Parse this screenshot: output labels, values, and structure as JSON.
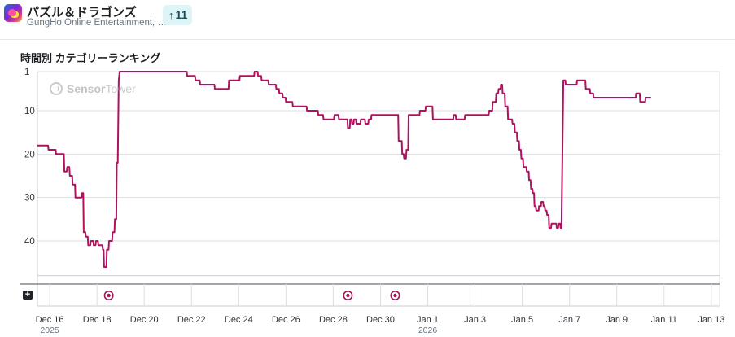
{
  "app": {
    "title": "パズル＆ドラゴンズ",
    "publisher": "GungHo Online Entertainment, …",
    "rank_change": "11",
    "icon": "app-icon-dragon",
    "rank_arrow_icon": "arrow-up-icon"
  },
  "section_title": "時間別 カテゴリーランキング",
  "watermark": {
    "brand_bold": "Sensor",
    "brand_rest": "Tower",
    "icon": "sensortower-logo-icon"
  },
  "annotation_icon": "add-annotation-icon",
  "colors": {
    "line": "#b0125f",
    "grid": "#dcdfe3",
    "badge_bg": "#dff4f6",
    "badge_text": "#15505a"
  },
  "chart_data": {
    "type": "line",
    "title": "時間別 カテゴリーランキング",
    "y_reversed": true,
    "ylim": [
      1,
      48
    ],
    "y_ticks": [
      1,
      10,
      20,
      30,
      40
    ],
    "x_range_days": [
      -0.52,
      28.35
    ],
    "x_ticks": [
      {
        "day": 0,
        "label": "Dec 16",
        "year": "2025"
      },
      {
        "day": 2,
        "label": "Dec 18"
      },
      {
        "day": 4,
        "label": "Dec 20"
      },
      {
        "day": 6,
        "label": "Dec 22"
      },
      {
        "day": 8,
        "label": "Dec 24"
      },
      {
        "day": 10,
        "label": "Dec 26"
      },
      {
        "day": 12,
        "label": "Dec 28"
      },
      {
        "day": 14,
        "label": "Dec 30"
      },
      {
        "day": 16,
        "label": "Jan 1",
        "year": "2026"
      },
      {
        "day": 18,
        "label": "Jan 3"
      },
      {
        "day": 20,
        "label": "Jan 5"
      },
      {
        "day": 22,
        "label": "Jan 7"
      },
      {
        "day": 24,
        "label": "Jan 9"
      },
      {
        "day": 26,
        "label": "Jan 11"
      },
      {
        "day": 28,
        "label": "Jan 13"
      }
    ],
    "annotation_markers_days": [
      2.5,
      12.62,
      14.62
    ],
    "grid": true,
    "series": [
      {
        "points": [
          [
            -0.52,
            18
          ],
          [
            -0.07,
            18
          ],
          [
            -0.05,
            19
          ],
          [
            0.25,
            19
          ],
          [
            0.27,
            20
          ],
          [
            0.6,
            20
          ],
          [
            0.62,
            24
          ],
          [
            0.72,
            24
          ],
          [
            0.74,
            23
          ],
          [
            0.83,
            23
          ],
          [
            0.85,
            25
          ],
          [
            0.95,
            25
          ],
          [
            0.97,
            27
          ],
          [
            1.07,
            27
          ],
          [
            1.09,
            30
          ],
          [
            1.35,
            30
          ],
          [
            1.37,
            29
          ],
          [
            1.42,
            29
          ],
          [
            1.44,
            38
          ],
          [
            1.51,
            38
          ],
          [
            1.53,
            39
          ],
          [
            1.61,
            39
          ],
          [
            1.63,
            41
          ],
          [
            1.72,
            41
          ],
          [
            1.74,
            40
          ],
          [
            1.84,
            40
          ],
          [
            1.86,
            41
          ],
          [
            1.94,
            41
          ],
          [
            1.96,
            40
          ],
          [
            2.04,
            40
          ],
          [
            2.06,
            41
          ],
          [
            2.23,
            41
          ],
          [
            2.25,
            42
          ],
          [
            2.28,
            42
          ],
          [
            2.3,
            46
          ],
          [
            2.4,
            46
          ],
          [
            2.42,
            42
          ],
          [
            2.49,
            42
          ],
          [
            2.51,
            40
          ],
          [
            2.64,
            40
          ],
          [
            2.66,
            38
          ],
          [
            2.74,
            38
          ],
          [
            2.76,
            35
          ],
          [
            2.82,
            35
          ],
          [
            2.84,
            22
          ],
          [
            2.88,
            22
          ],
          [
            2.92,
            3
          ],
          [
            2.96,
            1
          ],
          [
            5.8,
            1
          ],
          [
            5.82,
            2
          ],
          [
            6.15,
            2
          ],
          [
            6.17,
            3
          ],
          [
            6.35,
            3
          ],
          [
            6.37,
            4
          ],
          [
            6.97,
            4
          ],
          [
            6.99,
            5
          ],
          [
            7.57,
            5
          ],
          [
            7.59,
            3
          ],
          [
            8.03,
            3
          ],
          [
            8.05,
            2
          ],
          [
            8.65,
            2
          ],
          [
            8.67,
            1
          ],
          [
            8.8,
            1
          ],
          [
            8.82,
            2
          ],
          [
            8.95,
            2
          ],
          [
            8.97,
            3
          ],
          [
            9.25,
            3
          ],
          [
            9.27,
            4
          ],
          [
            9.57,
            4
          ],
          [
            9.59,
            5
          ],
          [
            9.7,
            5
          ],
          [
            9.72,
            6
          ],
          [
            9.85,
            6
          ],
          [
            9.87,
            7
          ],
          [
            9.98,
            7
          ],
          [
            10.0,
            8
          ],
          [
            10.27,
            8
          ],
          [
            10.29,
            9
          ],
          [
            10.87,
            9
          ],
          [
            10.89,
            10
          ],
          [
            11.35,
            10
          ],
          [
            11.37,
            11
          ],
          [
            11.57,
            11
          ],
          [
            11.59,
            12
          ],
          [
            12.03,
            12
          ],
          [
            12.05,
            11
          ],
          [
            12.22,
            11
          ],
          [
            12.24,
            12
          ],
          [
            12.6,
            12
          ],
          [
            12.62,
            14
          ],
          [
            12.7,
            14
          ],
          [
            12.72,
            12
          ],
          [
            12.78,
            12
          ],
          [
            12.8,
            13
          ],
          [
            12.86,
            13
          ],
          [
            12.88,
            12
          ],
          [
            12.96,
            12
          ],
          [
            12.98,
            13
          ],
          [
            13.15,
            13
          ],
          [
            13.17,
            12
          ],
          [
            13.34,
            12
          ],
          [
            13.36,
            13
          ],
          [
            13.48,
            13
          ],
          [
            13.5,
            12
          ],
          [
            13.6,
            12
          ],
          [
            13.62,
            11
          ],
          [
            14.75,
            11
          ],
          [
            14.77,
            17
          ],
          [
            14.9,
            17
          ],
          [
            14.92,
            20
          ],
          [
            14.98,
            20
          ],
          [
            15.0,
            21
          ],
          [
            15.08,
            21
          ],
          [
            15.1,
            19
          ],
          [
            15.17,
            19
          ],
          [
            15.19,
            11
          ],
          [
            15.65,
            11
          ],
          [
            15.67,
            10
          ],
          [
            15.9,
            10
          ],
          [
            15.92,
            9
          ],
          [
            16.2,
            9
          ],
          [
            16.22,
            12
          ],
          [
            17.08,
            12
          ],
          [
            17.1,
            11
          ],
          [
            17.18,
            11
          ],
          [
            17.2,
            12
          ],
          [
            17.56,
            12
          ],
          [
            17.58,
            11
          ],
          [
            18.58,
            11
          ],
          [
            18.6,
            10
          ],
          [
            18.73,
            10
          ],
          [
            18.75,
            8
          ],
          [
            18.88,
            8
          ],
          [
            18.9,
            6
          ],
          [
            18.98,
            6
          ],
          [
            19.0,
            5
          ],
          [
            19.08,
            5
          ],
          [
            19.1,
            4
          ],
          [
            19.15,
            4
          ],
          [
            19.17,
            6
          ],
          [
            19.26,
            6
          ],
          [
            19.28,
            9
          ],
          [
            19.38,
            9
          ],
          [
            19.4,
            12
          ],
          [
            19.57,
            12
          ],
          [
            19.59,
            13
          ],
          [
            19.67,
            13
          ],
          [
            19.69,
            15
          ],
          [
            19.77,
            15
          ],
          [
            19.79,
            17
          ],
          [
            19.86,
            17
          ],
          [
            19.88,
            19
          ],
          [
            19.94,
            19
          ],
          [
            19.96,
            21
          ],
          [
            20.03,
            21
          ],
          [
            20.05,
            23
          ],
          [
            20.17,
            23
          ],
          [
            20.19,
            24
          ],
          [
            20.27,
            24
          ],
          [
            20.29,
            26
          ],
          [
            20.35,
            26
          ],
          [
            20.37,
            28
          ],
          [
            20.43,
            28
          ],
          [
            20.45,
            29
          ],
          [
            20.5,
            29
          ],
          [
            20.52,
            32
          ],
          [
            20.57,
            32
          ],
          [
            20.59,
            33
          ],
          [
            20.69,
            33
          ],
          [
            20.71,
            32
          ],
          [
            20.79,
            32
          ],
          [
            20.81,
            31
          ],
          [
            20.88,
            31
          ],
          [
            20.9,
            32
          ],
          [
            20.95,
            32
          ],
          [
            20.97,
            33
          ],
          [
            21.03,
            33
          ],
          [
            21.05,
            34
          ],
          [
            21.12,
            34
          ],
          [
            21.14,
            37
          ],
          [
            21.22,
            37
          ],
          [
            21.24,
            36
          ],
          [
            21.44,
            36
          ],
          [
            21.46,
            37
          ],
          [
            21.52,
            37
          ],
          [
            21.54,
            36
          ],
          [
            21.6,
            36
          ],
          [
            21.62,
            37
          ],
          [
            21.66,
            37
          ],
          [
            21.74,
            3
          ],
          [
            21.82,
            3
          ],
          [
            21.84,
            4
          ],
          [
            22.3,
            4
          ],
          [
            22.32,
            3
          ],
          [
            22.67,
            3
          ],
          [
            22.69,
            5
          ],
          [
            22.86,
            5
          ],
          [
            22.88,
            6
          ],
          [
            23.0,
            6
          ],
          [
            23.02,
            7
          ],
          [
            24.8,
            7
          ],
          [
            24.82,
            6
          ],
          [
            24.97,
            6
          ],
          [
            24.99,
            8
          ],
          [
            25.2,
            8
          ],
          [
            25.22,
            7
          ],
          [
            25.45,
            7
          ]
        ]
      }
    ]
  }
}
